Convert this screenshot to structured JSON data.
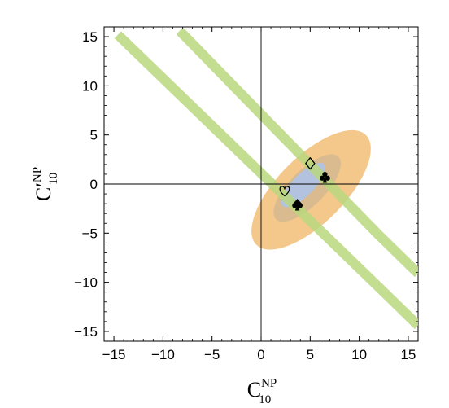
{
  "chart_data": {
    "type": "scatter",
    "title": "",
    "xlabel": {
      "main": "C",
      "prime": "",
      "sup": "NP",
      "sub": "10"
    },
    "ylabel": {
      "main": "C",
      "prime": "′",
      "sup": "NP",
      "sub": "10"
    },
    "xlim": [
      -16,
      16
    ],
    "ylim": [
      -16,
      16
    ],
    "xticks": [
      -15,
      -10,
      -5,
      0,
      5,
      10,
      15
    ],
    "yticks": [
      -15,
      -10,
      -5,
      0,
      5,
      10,
      15
    ],
    "tick_labels_x": [
      "−15",
      "−10",
      "−5",
      "0",
      "5",
      "10",
      "15"
    ],
    "tick_labels_y": [
      "−15",
      "−10",
      "−5",
      "0",
      "5",
      "10",
      "15"
    ],
    "grid": false,
    "colors": {
      "band": "#b9d77e",
      "ellipse_outer": "#f3c27e",
      "ellipse_middle": "#d6b98f",
      "ellipse_inner": "#aec4e8",
      "axis": "#000000"
    },
    "bands": [
      {
        "name": "",
        "points": [
          [
            -14.6,
            15.2
          ],
          [
            12.0,
            -10.5
          ],
          [
            16.0,
            -14.4
          ]
        ],
        "width": 1.0
      },
      {
        "name": "",
        "points": [
          [
            -8.3,
            15.6
          ],
          [
            12.0,
            -5.2
          ],
          [
            16.0,
            -9.1
          ]
        ],
        "width": 1.0
      }
    ],
    "ellipses": [
      {
        "level": "outer",
        "center": [
          5.1,
          -0.6
        ],
        "semi_axes": [
          7.9,
          3.4
        ],
        "angle_deg": 45
      },
      {
        "level": "middle",
        "center": [
          4.7,
          -0.4
        ],
        "semi_axes": [
          4.5,
          1.8
        ],
        "angle_deg": 45
      },
      {
        "level": "inner",
        "center": [
          4.3,
          -0.1
        ],
        "semi_axes": [
          3.0,
          1.1
        ],
        "angle_deg": 45
      }
    ],
    "markers": [
      {
        "symbol": "diamond",
        "filled": false,
        "x": 5.0,
        "y": 2.1
      },
      {
        "symbol": "club",
        "filled": true,
        "x": 6.5,
        "y": 0.7
      },
      {
        "symbol": "heart",
        "filled": false,
        "x": 2.4,
        "y": -0.7
      },
      {
        "symbol": "spade",
        "filled": true,
        "x": 3.7,
        "y": -2.1
      }
    ]
  }
}
